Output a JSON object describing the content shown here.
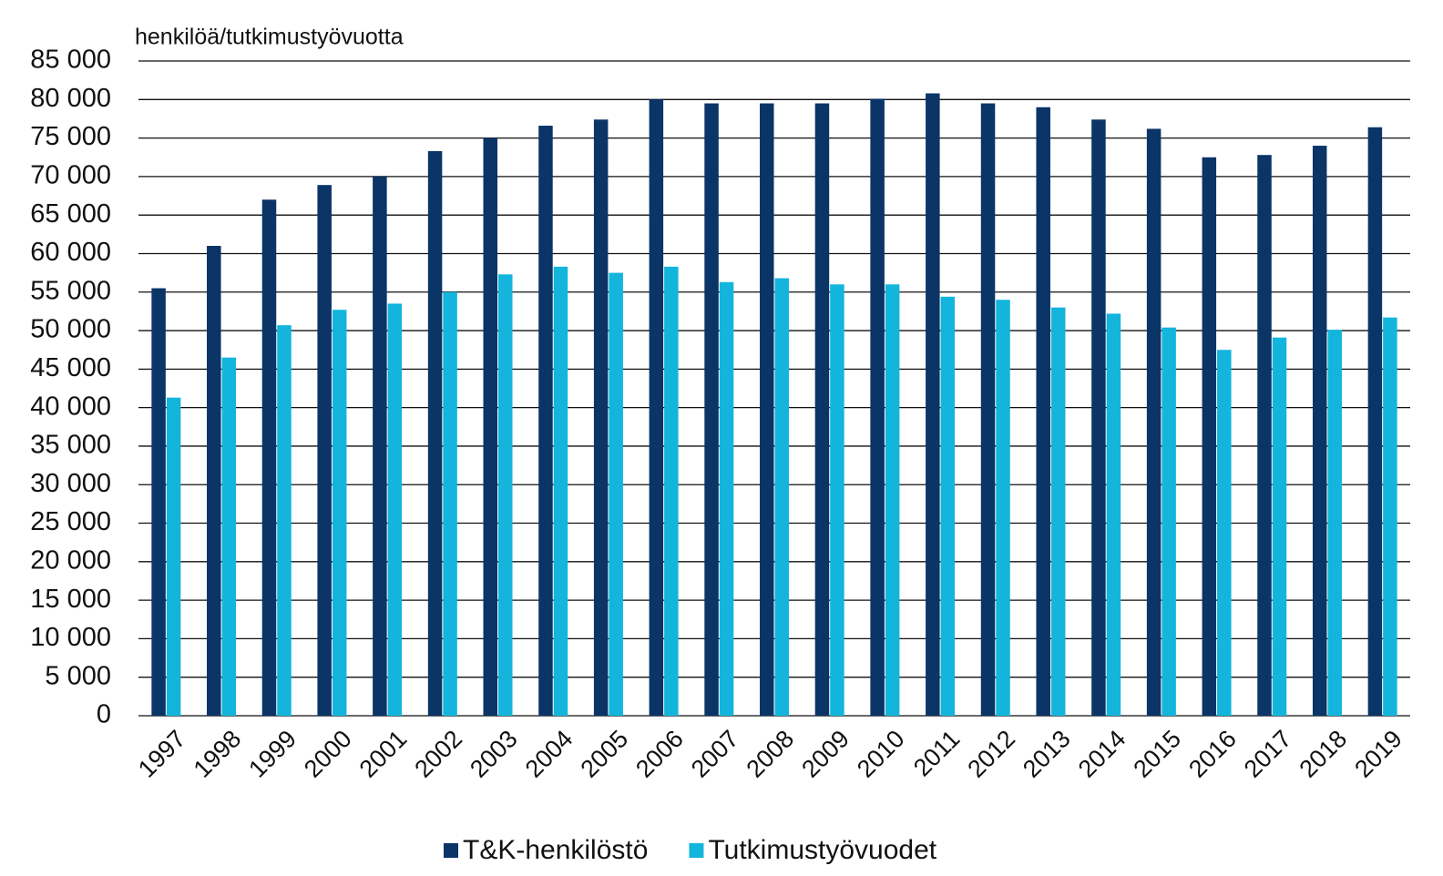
{
  "chart_data": {
    "type": "bar",
    "y_axis_label": "henkilöä/tutkimustyövuotta",
    "categories": [
      "1997",
      "1998",
      "1999",
      "2000",
      "2001",
      "2002",
      "2003",
      "2004",
      "2005",
      "2006",
      "2007",
      "2008",
      "2009",
      "2010",
      "2011",
      "2012",
      "2013",
      "2014",
      "2015",
      "2016",
      "2017",
      "2018",
      "2019"
    ],
    "series": [
      {
        "name": "T&K-henkilöstö",
        "color": "#0b3467",
        "values": [
          55500,
          61000,
          67000,
          68900,
          70000,
          73300,
          75000,
          76600,
          77400,
          80000,
          79500,
          79500,
          79500,
          80100,
          80800,
          79500,
          79000,
          77400,
          76200,
          72500,
          72800,
          74000,
          76400
        ]
      },
      {
        "name": "Tutkimustyövuodet",
        "color": "#13b5dc",
        "values": [
          41300,
          46500,
          50700,
          52700,
          53500,
          55000,
          57300,
          58300,
          57500,
          58300,
          56300,
          56800,
          56000,
          56000,
          54400,
          54000,
          53000,
          52200,
          50400,
          47500,
          49100,
          50100,
          51700
        ]
      }
    ],
    "ylim": [
      0,
      85000
    ],
    "yticks": [
      0,
      {
        "value": 5000,
        "label": "5 000"
      },
      {
        "value": 10000,
        "label": "10 000"
      },
      {
        "value": 15000,
        "label": "15 000"
      },
      {
        "value": 20000,
        "label": "20 000"
      },
      {
        "value": 25000,
        "label": "25 000"
      },
      {
        "value": 30000,
        "label": "30 000"
      },
      {
        "value": 35000,
        "label": "35 000"
      },
      {
        "value": 40000,
        "label": "40 000"
      },
      {
        "value": 45000,
        "label": "45 000"
      },
      {
        "value": 50000,
        "label": "50 000"
      },
      {
        "value": 55000,
        "label": "55 000"
      },
      {
        "value": 60000,
        "label": "60 000"
      },
      {
        "value": 65000,
        "label": "65 000"
      },
      {
        "value": 70000,
        "label": "70 000"
      },
      {
        "value": 75000,
        "label": "75 000"
      },
      {
        "value": 80000,
        "label": "80 000"
      },
      {
        "value": 85000,
        "label": "85 000"
      }
    ],
    "grid": true,
    "legend": "bottom"
  }
}
